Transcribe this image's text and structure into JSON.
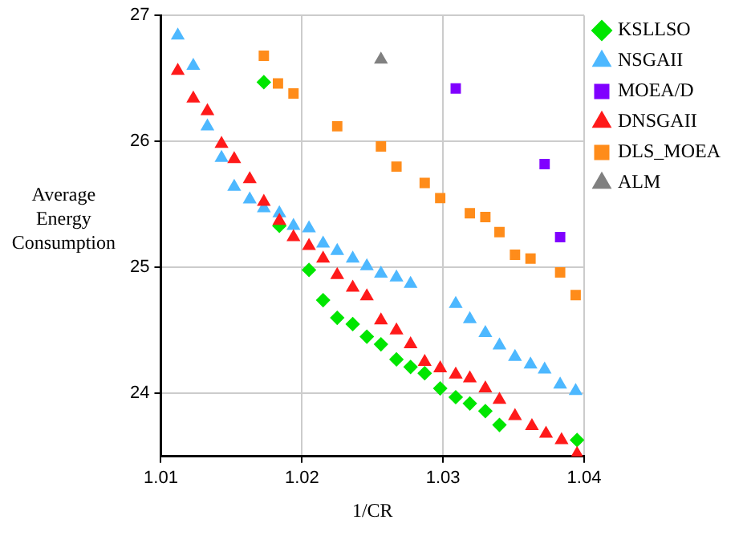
{
  "chart_data": {
    "type": "scatter",
    "xlabel": "1/CR",
    "ylabel": "Average Energy Consumption",
    "xlim": [
      1.01,
      1.04
    ],
    "xticks": [
      1.01,
      1.02,
      1.03,
      1.04
    ],
    "ylim": [
      23.5,
      27
    ],
    "yticks": [
      24,
      25,
      26,
      27
    ],
    "grid": true,
    "legend": "top right",
    "series": [
      {
        "name": "KSLLSO",
        "color": "#00e600",
        "marker": "diamond",
        "x": [
          1.0173,
          1.0184,
          1.0205,
          1.0215,
          1.0225,
          1.0236,
          1.0246,
          1.0256,
          1.0267,
          1.0277,
          1.0287,
          1.0298,
          1.0309,
          1.0319,
          1.033,
          1.034,
          1.0395
        ],
        "values": [
          26.47,
          25.33,
          24.98,
          24.74,
          24.6,
          24.55,
          24.45,
          24.39,
          24.27,
          24.21,
          24.16,
          24.04,
          23.97,
          23.92,
          23.86,
          23.75,
          23.63
        ]
      },
      {
        "name": "NSGAII",
        "color": "#4db8ff",
        "marker": "triangle",
        "x": [
          1.0112,
          1.0123,
          1.0133,
          1.0143,
          1.0152,
          1.0163,
          1.0173,
          1.0184,
          1.0194,
          1.0205,
          1.0215,
          1.0225,
          1.0236,
          1.0246,
          1.0256,
          1.0267,
          1.0277,
          1.0309,
          1.0319,
          1.033,
          1.034,
          1.0351,
          1.0362,
          1.0372,
          1.0383,
          1.0394
        ],
        "values": [
          26.84,
          26.6,
          26.12,
          25.87,
          25.64,
          25.54,
          25.47,
          25.43,
          25.33,
          25.31,
          25.19,
          25.13,
          25.07,
          25.01,
          24.95,
          24.92,
          24.87,
          24.71,
          24.59,
          24.48,
          24.38,
          24.29,
          24.23,
          24.19,
          24.07,
          24.02
        ]
      },
      {
        "name": "MOEA/D",
        "color": "#8000ff",
        "marker": "square",
        "x": [
          1.0309,
          1.0372,
          1.0383
        ],
        "values": [
          26.42,
          25.82,
          25.24
        ]
      },
      {
        "name": "DNSGAII",
        "color": "#ff1a1a",
        "marker": "triangle",
        "x": [
          1.0112,
          1.0123,
          1.0133,
          1.0143,
          1.0152,
          1.0163,
          1.0173,
          1.0184,
          1.0194,
          1.0205,
          1.0215,
          1.0225,
          1.0236,
          1.0246,
          1.0256,
          1.0267,
          1.0277,
          1.0287,
          1.0298,
          1.0309,
          1.0319,
          1.033,
          1.034,
          1.0351,
          1.0363,
          1.0373,
          1.0384,
          1.0395
        ],
        "values": [
          26.56,
          26.34,
          26.24,
          25.98,
          25.86,
          25.7,
          25.52,
          25.37,
          25.24,
          25.17,
          25.07,
          24.94,
          24.84,
          24.77,
          24.58,
          24.5,
          24.39,
          24.25,
          24.2,
          24.15,
          24.12,
          24.04,
          23.95,
          23.82,
          23.74,
          23.68,
          23.63,
          23.52
        ]
      },
      {
        "name": "DLS_MOEA",
        "color": "#ff8c1a",
        "marker": "square",
        "x": [
          1.0173,
          1.0183,
          1.0194,
          1.0225,
          1.0256,
          1.0267,
          1.0287,
          1.0298,
          1.0319,
          1.033,
          1.034,
          1.0351,
          1.0362,
          1.0383,
          1.0394
        ],
        "values": [
          26.68,
          26.46,
          26.38,
          26.12,
          25.96,
          25.8,
          25.67,
          25.55,
          25.43,
          25.4,
          25.28,
          25.1,
          25.07,
          24.96,
          24.78
        ]
      },
      {
        "name": "ALM",
        "color": "#808080",
        "marker": "triangle",
        "x": [
          1.0256
        ],
        "values": [
          26.65
        ]
      }
    ]
  }
}
